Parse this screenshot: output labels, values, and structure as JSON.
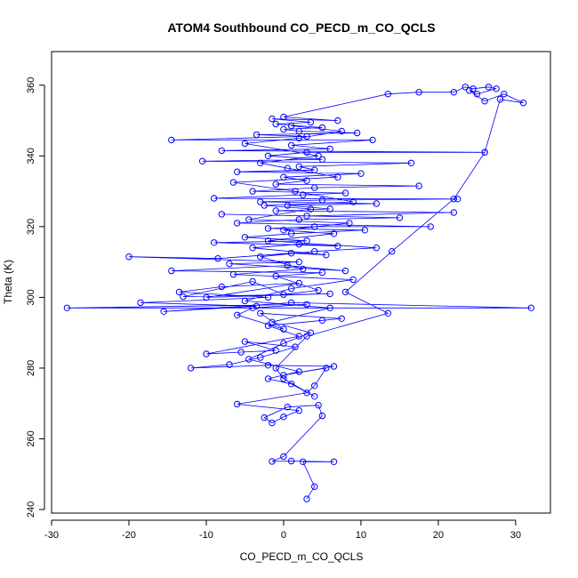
{
  "chart_data": {
    "type": "scatter",
    "title": "ATOM4 Southbound CO_PECD_m_CO_QCLS",
    "xlabel": "CO_PECD_m_CO_QCLS",
    "ylabel": "Theta (K)",
    "xlim": [
      -30,
      34.5
    ],
    "ylim": [
      239,
      369.5
    ],
    "x_ticks": [
      "-30",
      "-20",
      "-10",
      "0",
      "10",
      "20",
      "30"
    ],
    "y_ticks": [
      "240",
      "260",
      "280",
      "300",
      "320",
      "340",
      "360"
    ],
    "grid": false,
    "legend": "none",
    "colors": {
      "series": "#0000ff",
      "axis": "#000000"
    },
    "series": [
      {
        "style": "lines+open-circles",
        "points": [
          [
            3.0,
            243.0
          ],
          [
            4.0,
            246.5
          ],
          [
            2.5,
            253.5
          ],
          [
            6.5,
            253.5
          ],
          [
            1.0,
            253.7
          ],
          [
            -1.5,
            253.6
          ],
          [
            0.0,
            255.0
          ],
          [
            5.0,
            266.5
          ],
          [
            4.5,
            269.5
          ],
          [
            0.5,
            269.0
          ],
          [
            -2.5,
            266.0
          ],
          [
            -1.5,
            264.5
          ],
          [
            0.0,
            266.2
          ],
          [
            2.0,
            268.0
          ],
          [
            -6.0,
            269.8
          ],
          [
            3.0,
            273.0
          ],
          [
            4.0,
            275.0
          ],
          [
            5.5,
            280.0
          ],
          [
            0.0,
            278.0
          ],
          [
            6.5,
            280.5
          ],
          [
            -2.0,
            280.8
          ],
          [
            -12.0,
            280.0
          ],
          [
            -7.0,
            281.0
          ],
          [
            -3.0,
            283.0
          ],
          [
            1.5,
            286.0
          ],
          [
            -5.0,
            287.5
          ],
          [
            -1.0,
            285.0
          ],
          [
            -5.5,
            284.5
          ],
          [
            -10.0,
            284.0
          ],
          [
            2.0,
            289.0
          ],
          [
            -2.0,
            292.0
          ],
          [
            5.0,
            293.5
          ],
          [
            7.5,
            294.0
          ],
          [
            -3.0,
            295.5
          ],
          [
            0.0,
            291.0
          ],
          [
            -6.0,
            295.0
          ],
          [
            -4.0,
            297.0
          ],
          [
            3.0,
            298.0
          ],
          [
            -28.0,
            297.0
          ],
          [
            32.0,
            297.0
          ],
          [
            1.0,
            298.5
          ],
          [
            -15.5,
            296.0
          ],
          [
            -3.5,
            297.5
          ],
          [
            -18.5,
            298.5
          ],
          [
            -2.0,
            300.0
          ],
          [
            -13.5,
            301.5
          ],
          [
            -8.0,
            303.0
          ],
          [
            2.0,
            304.0
          ],
          [
            -10.0,
            300.0
          ],
          [
            6.0,
            301.0
          ],
          [
            -13.0,
            300.2
          ],
          [
            -4.0,
            304.5
          ],
          [
            0.0,
            300.8
          ],
          [
            4.5,
            302.0
          ],
          [
            -1.0,
            306.0
          ],
          [
            5.0,
            307.0
          ],
          [
            -14.5,
            307.5
          ],
          [
            0.5,
            309.0
          ],
          [
            8.0,
            307.5
          ],
          [
            -7.0,
            309.5
          ],
          [
            2.0,
            310.0
          ],
          [
            -20.0,
            311.5
          ],
          [
            -8.5,
            311.0
          ],
          [
            1.0,
            312.5
          ],
          [
            5.5,
            312.0
          ],
          [
            -4.0,
            314.0
          ],
          [
            2.0,
            315.0
          ],
          [
            7.0,
            314.5
          ],
          [
            -9.0,
            315.5
          ],
          [
            3.0,
            316.0
          ],
          [
            -5.0,
            317.0
          ],
          [
            1.0,
            318.0
          ],
          [
            10.5,
            319.0
          ],
          [
            -2.0,
            319.5
          ],
          [
            4.0,
            320.0
          ],
          [
            19.0,
            320.0
          ],
          [
            -6.0,
            321.0
          ],
          [
            2.0,
            322.0
          ],
          [
            15.0,
            322.5
          ],
          [
            -8.0,
            323.5
          ],
          [
            3.0,
            323.0
          ],
          [
            22.0,
            324.0
          ],
          [
            -1.0,
            324.5
          ],
          [
            6.0,
            325.0
          ],
          [
            0.5,
            326.0
          ],
          [
            12.0,
            326.5
          ],
          [
            -3.0,
            327.0
          ],
          [
            5.0,
            327.5
          ],
          [
            22.5,
            327.8
          ],
          [
            -9.0,
            328.0
          ],
          [
            2.5,
            329.0
          ],
          [
            8.0,
            329.5
          ],
          [
            -4.0,
            330.0
          ],
          [
            4.0,
            331.0
          ],
          [
            17.5,
            331.5
          ],
          [
            -1.0,
            332.0
          ],
          [
            3.0,
            333.0
          ],
          [
            0.0,
            334.0
          ],
          [
            10.0,
            335.0
          ],
          [
            -6.0,
            335.5
          ],
          [
            4.0,
            336.0
          ],
          [
            2.0,
            337.0
          ],
          [
            16.5,
            338.0
          ],
          [
            -10.5,
            338.5
          ],
          [
            5.0,
            339.0
          ],
          [
            -2.0,
            340.0
          ],
          [
            3.0,
            341.0
          ],
          [
            26.0,
            341.0
          ],
          [
            -8.0,
            341.5
          ],
          [
            6.0,
            342.0
          ],
          [
            1.0,
            343.0
          ],
          [
            11.5,
            344.5
          ],
          [
            -14.5,
            344.5
          ],
          [
            3.0,
            345.5
          ],
          [
            -3.5,
            346.0
          ],
          [
            9.5,
            346.5
          ],
          [
            2.0,
            347.0
          ],
          [
            0.0,
            347.5
          ],
          [
            5.0,
            348.0
          ],
          [
            -1.0,
            349.0
          ],
          [
            3.5,
            349.5
          ],
          [
            -1.5,
            350.5
          ],
          [
            7.0,
            350.0
          ],
          [
            0.0,
            351.0
          ],
          [
            13.5,
            357.5
          ],
          [
            17.5,
            358.0
          ],
          [
            22.0,
            358.0
          ],
          [
            23.5,
            359.5
          ],
          [
            24.5,
            359.0
          ],
          [
            26.5,
            359.5
          ],
          [
            27.5,
            359.0
          ],
          [
            25.0,
            357.5
          ],
          [
            24.0,
            358.5
          ],
          [
            26.0,
            355.5
          ],
          [
            28.5,
            357.5
          ],
          [
            31.0,
            355.0
          ],
          [
            28.0,
            356.0
          ],
          [
            26.0,
            341.0
          ],
          [
            22.0,
            327.8
          ],
          [
            14.0,
            313.0
          ],
          [
            8.0,
            301.5
          ],
          [
            13.5,
            295.5
          ],
          [
            3.0,
            289.0
          ],
          [
            -1.0,
            280.0
          ],
          [
            0.0,
            277.0
          ],
          [
            4.0,
            272.0
          ],
          [
            1.0,
            275.5
          ],
          [
            -2.0,
            277.0
          ],
          [
            2.0,
            279.0
          ],
          [
            -4.5,
            282.5
          ],
          [
            0.0,
            287.0
          ],
          [
            3.5,
            290.0
          ],
          [
            -1.5,
            293.0
          ],
          [
            6.0,
            297.0
          ],
          [
            -5.0,
            299.0
          ],
          [
            1.0,
            302.5
          ],
          [
            9.0,
            305.0
          ],
          [
            -6.5,
            306.5
          ],
          [
            2.5,
            308.0
          ],
          [
            -3.0,
            311.5
          ],
          [
            4.0,
            313.0
          ],
          [
            12.0,
            314.0
          ],
          [
            -2.0,
            316.0
          ],
          [
            6.5,
            318.0
          ],
          [
            0.0,
            319.0
          ],
          [
            8.5,
            321.0
          ],
          [
            -4.5,
            322.0
          ],
          [
            3.5,
            325.0
          ],
          [
            -2.5,
            326.0
          ],
          [
            9.0,
            327.0
          ],
          [
            1.5,
            330.0
          ],
          [
            -6.5,
            332.5
          ],
          [
            7.0,
            334.0
          ],
          [
            0.5,
            336.5
          ],
          [
            -3.0,
            338.0
          ],
          [
            4.5,
            340.0
          ],
          [
            -5.0,
            343.5
          ],
          [
            2.0,
            345.0
          ],
          [
            7.5,
            347.0
          ],
          [
            1.0,
            348.5
          ]
        ]
      }
    ]
  }
}
